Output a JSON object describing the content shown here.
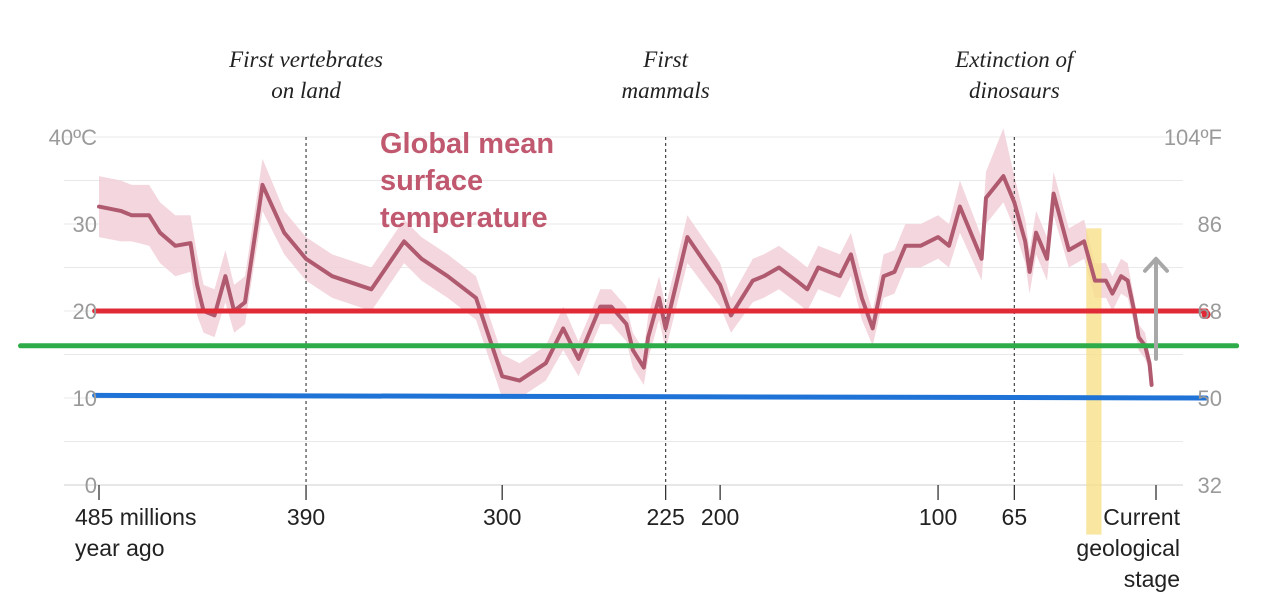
{
  "chart_data": {
    "type": "line",
    "title": "Global mean surface temperature",
    "title_lines": [
      "Global mean",
      "surface",
      "temperature"
    ],
    "title_color": "#c0596f",
    "line_color": "#b05a70",
    "band_color": "#f2d0d8",
    "x_reversed": true,
    "xlim": [
      485,
      -25
    ],
    "ylim": [
      0,
      40
    ],
    "grid": true,
    "y_ticks_left": [
      {
        "value": 0,
        "label": "0"
      },
      {
        "value": 10,
        "label": "10"
      },
      {
        "value": 20,
        "label": "20"
      },
      {
        "value": 30,
        "label": "30"
      },
      {
        "value": 40,
        "label": "40ºC"
      }
    ],
    "y_ticks_right": [
      {
        "value": 0,
        "label": "32"
      },
      {
        "value": 10,
        "label": "50"
      },
      {
        "value": 20,
        "label": "68"
      },
      {
        "value": 30,
        "label": "86"
      },
      {
        "value": 40,
        "label": "104ºF"
      }
    ],
    "x_ticks": [
      {
        "value": 485,
        "lines": [
          "485 millions",
          "year ago"
        ]
      },
      {
        "value": 390,
        "lines": [
          "390"
        ]
      },
      {
        "value": 300,
        "lines": [
          "300"
        ]
      },
      {
        "value": 225,
        "lines": [
          "225"
        ]
      },
      {
        "value": 200,
        "lines": [
          "200"
        ]
      },
      {
        "value": 100,
        "lines": [
          "100"
        ]
      },
      {
        "value": 65,
        "lines": [
          "65"
        ]
      },
      {
        "value": 0,
        "lines": [
          "Current",
          "geological",
          "stage"
        ]
      }
    ],
    "events": [
      {
        "value": 390,
        "lines": [
          "First vertebrates",
          "on land"
        ]
      },
      {
        "value": 225,
        "lines": [
          "First",
          "mammals"
        ]
      },
      {
        "value": 65,
        "lines": [
          "Extinction of",
          "dinosaurs"
        ]
      }
    ],
    "series": [
      {
        "x": [
          485,
          475,
          470,
          462,
          457,
          450,
          443,
          440,
          437,
          432,
          427,
          423,
          418,
          410,
          400,
          390,
          378,
          360,
          345,
          337,
          325,
          312,
          300,
          292,
          280,
          272,
          265,
          255,
          250,
          243,
          240,
          235,
          233,
          228,
          225,
          215,
          200,
          195,
          185,
          180,
          173,
          165,
          160,
          155,
          145,
          140,
          135,
          130,
          125,
          120,
          115,
          108,
          100,
          95,
          90,
          80,
          78,
          70,
          65,
          60,
          58,
          55,
          50,
          47,
          40,
          33,
          28,
          23,
          20,
          16,
          13,
          10,
          8,
          5,
          3,
          2
        ],
        "y": [
          32,
          31.5,
          31,
          31,
          29,
          27.5,
          27.8,
          23,
          20,
          19.5,
          24,
          20,
          21,
          34.5,
          29,
          26,
          24,
          22.5,
          28,
          26,
          24,
          21.5,
          12.5,
          12,
          14,
          18,
          14.5,
          20.5,
          20.5,
          18.5,
          15.5,
          13.5,
          17,
          21.5,
          18,
          28.5,
          23,
          19.5,
          23.5,
          24,
          25,
          23.5,
          22.5,
          25,
          24,
          26.5,
          21.5,
          18,
          24,
          24.5,
          27.5,
          27.5,
          28.5,
          27.5,
          32,
          26,
          33,
          35.5,
          32.5,
          28,
          24.5,
          29,
          26,
          33.5,
          27,
          28,
          23.5,
          23.5,
          22,
          24,
          23.5,
          20,
          17,
          16,
          14,
          11.5
        ],
        "lower": [
          28.5,
          28,
          28,
          27.5,
          25.5,
          24,
          24.5,
          19.5,
          17.5,
          17,
          21,
          17.5,
          18.5,
          31.5,
          26.5,
          23.5,
          21.5,
          20,
          25.5,
          23.5,
          21.5,
          19,
          10,
          10,
          12,
          15.5,
          12.5,
          18.5,
          18.5,
          16.5,
          13.5,
          11.5,
          14.5,
          19,
          15.5,
          25.5,
          20.5,
          17.5,
          21,
          21.5,
          22.5,
          21,
          20,
          22.5,
          21.5,
          24,
          19,
          16,
          21.5,
          22,
          25,
          25,
          26,
          25,
          29,
          23.5,
          30,
          32.5,
          29.5,
          25.5,
          22,
          26.5,
          23.5,
          31,
          25,
          26,
          21.5,
          21.5,
          20,
          22,
          21.5,
          18.5,
          15.5,
          14.5,
          13,
          11
        ],
        "upper": [
          35.5,
          35,
          34.5,
          34.5,
          32.5,
          31,
          31,
          26.5,
          23,
          22.5,
          27,
          23,
          24,
          37.5,
          31.5,
          28.5,
          26.5,
          25,
          30.5,
          28.5,
          26.5,
          24,
          15,
          14,
          16,
          20.5,
          16.5,
          22.5,
          22.5,
          20.5,
          17.5,
          15.5,
          19.5,
          24,
          20.5,
          31,
          25.5,
          21.5,
          26,
          26.5,
          27.5,
          26,
          25,
          27.5,
          26.5,
          29,
          24,
          20,
          26.5,
          27,
          30,
          30,
          31,
          30,
          35,
          28.5,
          36,
          41,
          35.5,
          30.5,
          27,
          31.5,
          28.5,
          36,
          29.5,
          30.5,
          25.5,
          25.5,
          24,
          26,
          25.5,
          21.5,
          18.5,
          17.5,
          15,
          12
        ]
      }
    ],
    "reference_lines": [
      {
        "color": "#e02a36",
        "x_from": 487,
        "x_to": -23,
        "y_from": 20,
        "y_to": 20
      },
      {
        "color": "#2eac4a",
        "x_from": 521,
        "x_to": -37,
        "y_from": 16,
        "y_to": 16
      },
      {
        "color": "#1f73d6",
        "x_from": 487,
        "x_to": -23,
        "y_from": 10.3,
        "y_to": 10.0
      }
    ],
    "current_marker": {
      "x": -23,
      "y": 19.6,
      "color": "#e02a36"
    },
    "highlight_band": {
      "x_from": 32,
      "x_to": 25,
      "y_from": -5.7,
      "y_to": 29.5,
      "color": "#f7e08a"
    },
    "arrow": {
      "x": 0,
      "y_from": 14.5,
      "y_to": 26,
      "color": "#a8a8a8"
    }
  }
}
